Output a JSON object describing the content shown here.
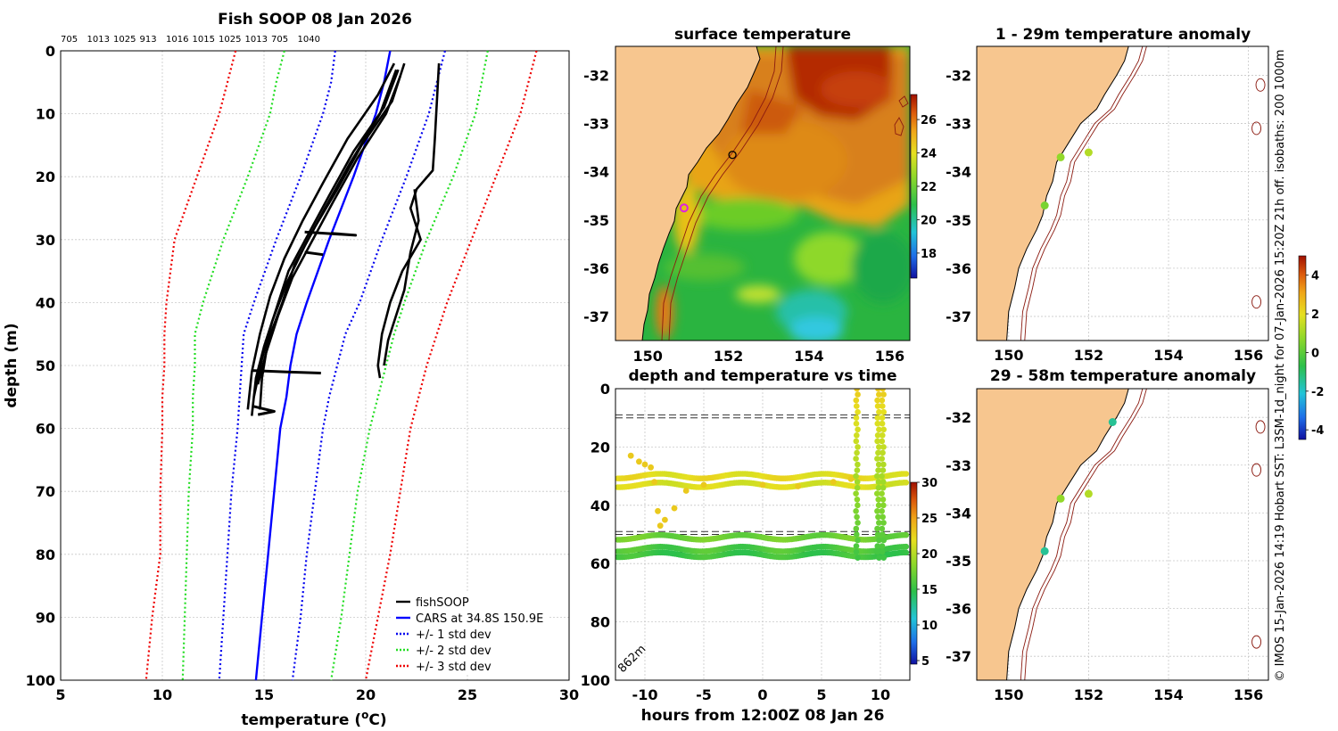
{
  "chart_data": [
    {
      "type": "line",
      "title": "Fish SOOP 08 Jan 2026",
      "top_counts": [
        "705",
        "1013",
        "1025",
        "913",
        "1016",
        "1015",
        "1025",
        "1013",
        "705",
        "1040"
      ],
      "xlabel": "temperature (",
      "xlabel_unit": "o",
      "xlabel_tail": "C)",
      "ylabel": "depth (m)",
      "xlim": [
        5,
        30
      ],
      "ylim": [
        100,
        0
      ],
      "xticks": [
        "5",
        "10",
        "15",
        "20",
        "25",
        "30"
      ],
      "yticks": [
        "0",
        "10",
        "20",
        "30",
        "40",
        "50",
        "60",
        "70",
        "80",
        "90",
        "100"
      ],
      "legend": [
        "fishSOOP",
        "CARS at 34.8S 150.9E",
        "+/- 1 std dev",
        "+/- 2 std dev",
        "+/- 3 std dev"
      ],
      "colors": {
        "fishSOOP": "#000000",
        "cars": "#0000ff",
        "std1": "#0000ee",
        "std2": "#22dd22",
        "std3": "#ee0000"
      },
      "depths": [
        0,
        5,
        10,
        20,
        30,
        40,
        45,
        50,
        55,
        60,
        70,
        80,
        90,
        100
      ],
      "cars_mean": [
        21.2,
        20.9,
        20.5,
        19.4,
        18.2,
        17.1,
        16.6,
        16.3,
        16.1,
        15.8,
        15.5,
        15.2,
        14.9,
        14.6
      ],
      "std1_low": [
        18.5,
        18.3,
        17.9,
        16.8,
        15.6,
        14.5,
        14.0,
        13.9,
        13.8,
        13.7,
        13.4,
        13.2,
        13.0,
        12.8
      ],
      "std1_high": [
        23.9,
        23.5,
        23.1,
        22.0,
        20.8,
        19.7,
        19.0,
        18.6,
        18.2,
        17.9,
        17.5,
        17.1,
        16.8,
        16.4
      ],
      "std2_low": [
        16.0,
        15.6,
        15.3,
        14.2,
        13.0,
        12.0,
        11.6,
        11.6,
        11.5,
        11.5,
        11.3,
        11.2,
        11.1,
        11.0
      ],
      "std2_high": [
        26.0,
        25.7,
        25.4,
        24.3,
        23.0,
        21.9,
        21.4,
        21.0,
        20.6,
        20.2,
        19.6,
        19.2,
        18.8,
        18.3
      ],
      "std3_low": [
        13.6,
        13.2,
        12.8,
        11.7,
        10.6,
        10.2,
        10.1,
        10.1,
        10.0,
        10.0,
        9.9,
        9.9,
        9.5,
        9.2
      ],
      "std3_high": [
        28.4,
        28.0,
        27.6,
        26.4,
        25.2,
        24.0,
        23.5,
        23.0,
        22.6,
        22.2,
        21.7,
        21.2,
        20.6,
        20.0
      ],
      "fishsoop_profiles": [
        [
          [
            21.9,
            2
          ],
          [
            21.3,
            8
          ],
          [
            19.8,
            15
          ],
          [
            18.6,
            22
          ],
          [
            17.5,
            28
          ],
          [
            16.5,
            34
          ],
          [
            15.9,
            40
          ],
          [
            15.2,
            46
          ],
          [
            14.9,
            52
          ],
          [
            14.8,
            57
          ]
        ],
        [
          [
            21.6,
            3
          ],
          [
            20.9,
            9
          ],
          [
            19.4,
            16
          ],
          [
            18.2,
            23
          ],
          [
            17.2,
            29
          ],
          [
            16.2,
            35
          ],
          [
            15.6,
            41
          ],
          [
            15.0,
            47
          ],
          [
            14.6,
            52
          ],
          [
            14.4,
            58
          ]
        ],
        [
          [
            21.4,
            2
          ],
          [
            20.6,
            7
          ],
          [
            19.1,
            14
          ],
          [
            17.9,
            21
          ],
          [
            16.9,
            27
          ],
          [
            16.0,
            33
          ],
          [
            15.3,
            39
          ],
          [
            14.8,
            45
          ],
          [
            14.4,
            51
          ],
          [
            14.2,
            57
          ]
        ],
        [
          [
            21.7,
            4
          ],
          [
            21.0,
            10
          ],
          [
            19.6,
            17
          ],
          [
            18.4,
            24
          ],
          [
            17.4,
            30
          ],
          [
            16.4,
            36
          ],
          [
            15.7,
            42
          ],
          [
            15.1,
            48
          ],
          [
            14.7,
            53
          ]
        ],
        [
          [
            21.5,
            3
          ],
          [
            20.7,
            10
          ],
          [
            19.2,
            18
          ],
          [
            18.0,
            25
          ],
          [
            17.0,
            31
          ],
          [
            16.1,
            37
          ],
          [
            15.4,
            43
          ],
          [
            14.9,
            49
          ],
          [
            14.5,
            55
          ]
        ],
        [
          [
            23.6,
            2
          ],
          [
            23.5,
            8
          ],
          [
            23.4,
            14
          ],
          [
            23.3,
            19
          ],
          [
            22.5,
            22
          ],
          [
            22.2,
            25
          ],
          [
            22.7,
            30
          ],
          [
            21.8,
            35
          ],
          [
            21.2,
            40
          ],
          [
            20.8,
            45
          ],
          [
            20.6,
            50
          ],
          [
            20.7,
            52
          ]
        ],
        [
          [
            22.4,
            22
          ],
          [
            22.6,
            27
          ],
          [
            22.2,
            32
          ],
          [
            21.9,
            38
          ],
          [
            21.5,
            42
          ],
          [
            21.1,
            46
          ],
          [
            20.9,
            50
          ]
        ]
      ],
      "fishsoop_blips": [
        [
          [
            17.0,
            28.8
          ],
          [
            19.5,
            29.3
          ],
          [
            18.3,
            29.0
          ]
        ],
        [
          [
            17.0,
            32.0
          ],
          [
            17.9,
            32.4
          ]
        ],
        [
          [
            14.4,
            50.8
          ],
          [
            16.0,
            51.0
          ],
          [
            17.8,
            51.2
          ]
        ],
        [
          [
            14.5,
            56.5
          ],
          [
            15.5,
            57.3
          ],
          [
            14.7,
            57.8
          ]
        ]
      ]
    },
    {
      "type": "heatmap",
      "title": "surface temperature",
      "xlim": [
        149.2,
        156.5
      ],
      "ylim": [
        -37.5,
        -31.4
      ],
      "xticks": [
        "150",
        "152",
        "154",
        "156"
      ],
      "yticks": [
        "-32",
        "-33",
        "-34",
        "-35",
        "-36",
        "-37"
      ],
      "colorbar_ticks": [
        "26",
        "24",
        "22",
        "20",
        "18"
      ],
      "colorbar_range": [
        16.5,
        27.5
      ],
      "vessel_points": [
        [
          152.1,
          -33.65
        ],
        [
          150.9,
          -34.75
        ]
      ]
    },
    {
      "type": "scatter",
      "title": "depth and temperature vs time",
      "xlabel": "hours from 12:00Z 08 Jan 26",
      "xlim": [
        -12.5,
        12.5
      ],
      "ylim": [
        100,
        0
      ],
      "xticks": [
        "-10",
        "-5",
        "0",
        "5",
        "10"
      ],
      "yticks": [
        "0",
        "20",
        "40",
        "60",
        "80",
        "100"
      ],
      "colorbar_ticks": [
        "30",
        "25",
        "20",
        "15",
        "10",
        "5"
      ],
      "colorbar_range": [
        4.5,
        30
      ],
      "bottom_depth_label": "862m",
      "dashed_depths": [
        9,
        10,
        49,
        50,
        56,
        57
      ],
      "tracks": [
        {
          "depth": 30,
          "temp": 21.5
        },
        {
          "depth": 33,
          "temp": 21.0
        },
        {
          "depth": 51,
          "temp": 17.0
        },
        {
          "depth": 55,
          "temp": 16.0
        },
        {
          "depth": 57,
          "temp": 15.5
        }
      ]
    },
    {
      "type": "scatter",
      "title": "1 - 29m temperature anomaly",
      "xticks": [
        "150",
        "152",
        "154",
        "156"
      ],
      "yticks": [
        "-32",
        "-33",
        "-34",
        "-35",
        "-36",
        "-37"
      ],
      "points": [
        [
          151.3,
          -33.7,
          0.5
        ],
        [
          152.0,
          -33.6,
          1.0
        ],
        [
          150.9,
          -34.7,
          0.2
        ]
      ]
    },
    {
      "type": "scatter",
      "title": "29 - 58m temperature anomaly",
      "xticks": [
        "150",
        "152",
        "154",
        "156"
      ],
      "yticks": [
        "-32",
        "-33",
        "-34",
        "-35",
        "-36",
        "-37"
      ],
      "points": [
        [
          152.6,
          -32.1,
          -1.5
        ],
        [
          151.3,
          -33.7,
          0.5
        ],
        [
          152.0,
          -33.6,
          1.0
        ],
        [
          150.9,
          -34.8,
          -1.5
        ]
      ]
    }
  ],
  "anomaly_colorbar": {
    "ticks": [
      "4",
      "2",
      "0",
      "-2",
      "-4"
    ],
    "range": [
      -4.5,
      5
    ]
  },
  "side_text": "© IMOS 15-Jan-2026 14:19 Hobart SST: L3SM-1d_night for 07-Jan-2026 15:20Z 21h off. isobaths: 200  1000m"
}
